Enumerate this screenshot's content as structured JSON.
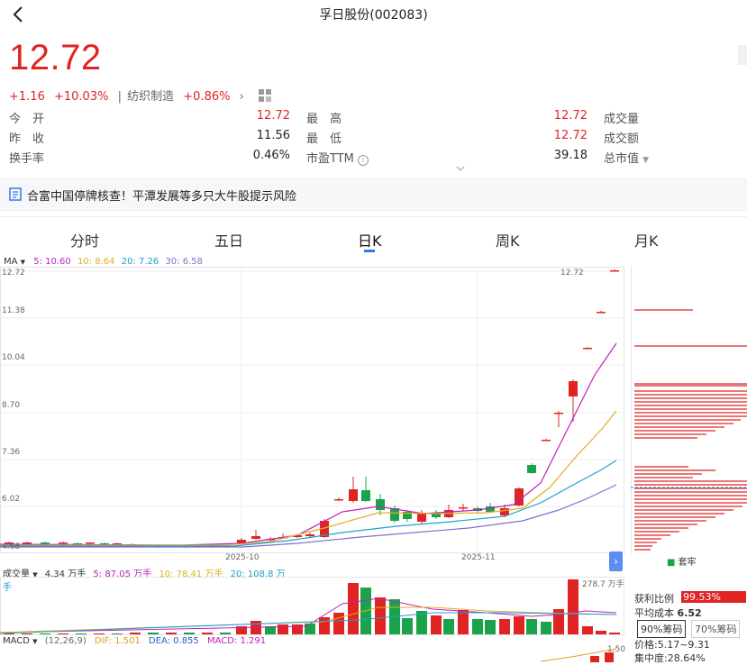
{
  "header": {
    "title": "孚日股份(002083)"
  },
  "quote": {
    "price": "12.72",
    "change": "+1.16",
    "change_pct": "+10.03%",
    "sector_name": "纺织制造",
    "sector_pct": "+0.86%"
  },
  "stats": [
    {
      "label": "今　开",
      "value": "12.72",
      "color": "red"
    },
    {
      "label": "最　高",
      "value": "12.72",
      "color": "red"
    },
    {
      "label": "成交量",
      "value": "",
      "color": ""
    },
    {
      "label": "昨　收",
      "value": "11.56",
      "color": "dark"
    },
    {
      "label": "最　低",
      "value": "12.72",
      "color": "red"
    },
    {
      "label": "成交额",
      "value": "",
      "color": ""
    },
    {
      "label": "换手率",
      "value": "0.46%",
      "color": "dark"
    },
    {
      "label": "市盈TTM",
      "value": "39.18",
      "color": "dark"
    },
    {
      "label": "总市值",
      "value": "",
      "color": ""
    }
  ],
  "notice": {
    "text": "合富中国停牌核查！平潭发展等多只大牛股提示风险"
  },
  "tabs": [
    "分时",
    "五日",
    "日K",
    "周K",
    "月K"
  ],
  "ma_legend": {
    "name": "MA",
    "ma5": "5: 10.60",
    "ma10": "10: 8.64",
    "ma20": "20: 7.26",
    "ma30": "30: 6.58"
  },
  "price_axis": [
    "12.72",
    "11.38",
    "10.04",
    "8.70",
    "7.36",
    "6.02",
    "4.68"
  ],
  "date_labels": [
    "2025-10",
    "2025-11"
  ],
  "top_right_label": "12.72",
  "volume_legend": {
    "name": "成交量",
    "v": "4.34 万手",
    "v5": "5: 87.05 万手",
    "v10": "10: 78.41 万手",
    "v20": "20: 108.8 万手"
  },
  "volume_max": "278.7 万手",
  "macd_legend": {
    "name": "MACD",
    "params": "(12,26,9)",
    "dif": "DIF: 1.501",
    "dea": "DEA: 0.855",
    "macd": "MACD: 1.291"
  },
  "macd_axis_top": "1.50",
  "chips": {
    "trapped_label": "套牢",
    "profit_label": "获利比例",
    "profit_value": "99.53%",
    "avg_cost_label": "平均成本",
    "avg_cost_value": "6.52",
    "btn90": "90%筹码",
    "btn70": "70%筹码",
    "range": "价格:5.17~9.31",
    "concentration": "集中度:28.64%"
  },
  "colors": {
    "up": "#e02424",
    "down": "#1aa34a",
    "ma5": "#c020c0",
    "ma10": "#e0b020",
    "ma20": "#20a0d0",
    "ma30": "#8070d0",
    "accent": "#2e7be6"
  }
}
